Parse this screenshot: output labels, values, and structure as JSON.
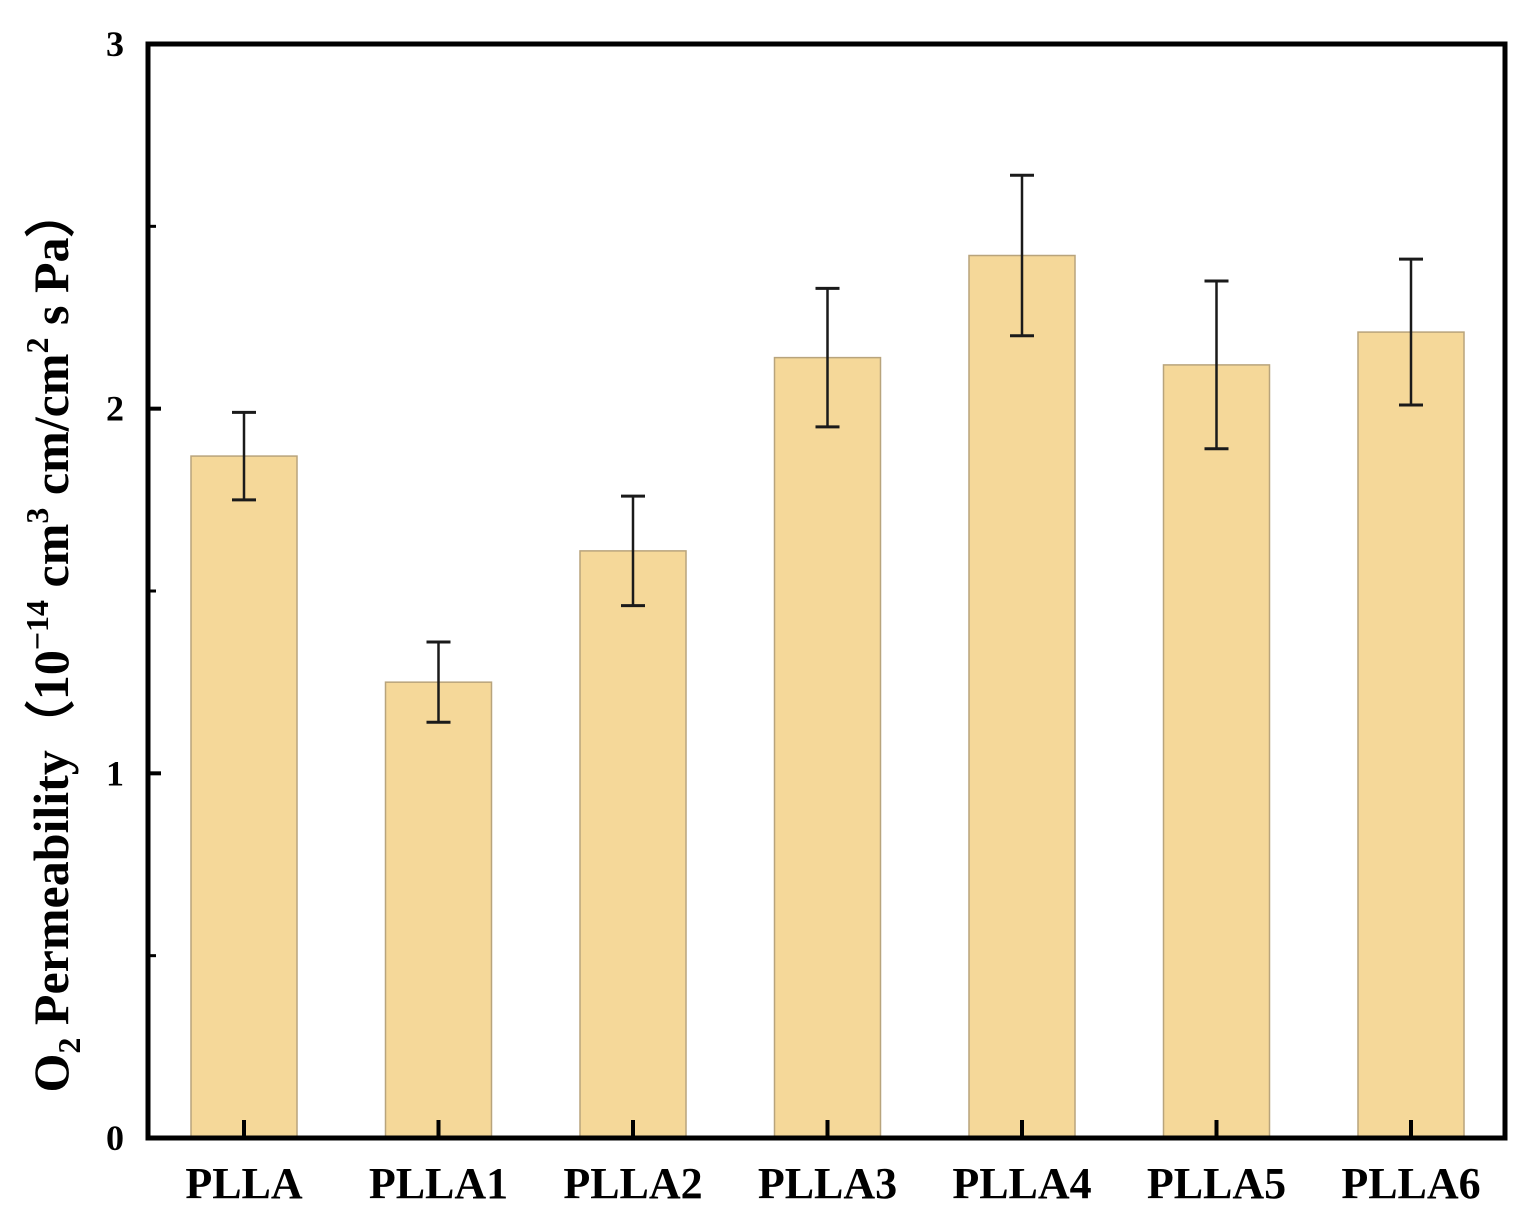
{
  "chart_data": {
    "type": "bar",
    "title": "",
    "xlabel": "",
    "ylabel": {
      "quantity": "O",
      "quantity_subscript": "2",
      "name": "Permeability",
      "unit_open": "（10",
      "unit_exp1": "−14",
      "unit_part2": " cm",
      "unit_exp2": "3",
      "unit_part3": " cm/cm",
      "unit_exp3": "2",
      "unit_part4": " s Pa）"
    },
    "ylim": [
      0,
      3
    ],
    "major_ticks": [
      "0",
      "1",
      "2",
      "3"
    ],
    "minor_ticks": [
      0.5,
      1.5,
      2.5
    ],
    "categories": [
      "PLLA",
      "PLLA1",
      "PLLA2",
      "PLLA3",
      "PLLA4",
      "PLLA5",
      "PLLA6"
    ],
    "values": [
      1.87,
      1.25,
      1.61,
      2.14,
      2.42,
      2.12,
      2.21
    ],
    "errors": [
      0.12,
      0.11,
      0.15,
      0.19,
      0.22,
      0.23,
      0.2
    ],
    "bar_color": "#f5d899",
    "bar_edge_color": "#b8a47c",
    "axis_color": "#000000",
    "grid": false,
    "legend": "none"
  }
}
